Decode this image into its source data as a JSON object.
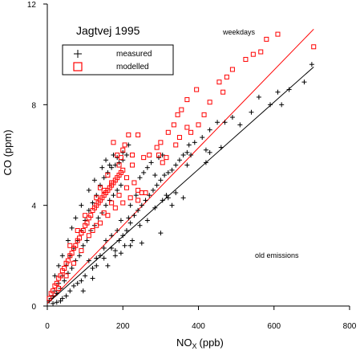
{
  "chart_data": {
    "type": "scatter",
    "title": "Jagtvej 1995",
    "xlabel": "NO",
    "xlabel_subscript": "X",
    "xlabel_unit": "(ppb)",
    "ylabel": "CO (ppm)",
    "xlim": [
      0,
      800
    ],
    "ylim": [
      0,
      12
    ],
    "x_ticks": [
      0,
      200,
      400,
      600,
      800
    ],
    "y_ticks": [
      0,
      4,
      8,
      12
    ],
    "grid": false,
    "legend_position": "top-left",
    "annotations": [
      "weekdays",
      "old emissions"
    ],
    "series": [
      {
        "name": "measured",
        "marker": "plus",
        "color": "#000000",
        "fit_line": [
          [
            0,
            0.1
          ],
          [
            705,
            9.5
          ]
        ],
        "points": [
          [
            5,
            0.2
          ],
          [
            10,
            0.3
          ],
          [
            15,
            0.4
          ],
          [
            20,
            0.6
          ],
          [
            25,
            0.5
          ],
          [
            30,
            0.9
          ],
          [
            35,
            0.7
          ],
          [
            40,
            1.2
          ],
          [
            45,
            1.0
          ],
          [
            50,
            1.6
          ],
          [
            55,
            1.3
          ],
          [
            60,
            2.0
          ],
          [
            65,
            1.5
          ],
          [
            70,
            2.3
          ],
          [
            75,
            1.8
          ],
          [
            80,
            2.6
          ],
          [
            85,
            2.0
          ],
          [
            90,
            3.0
          ],
          [
            95,
            2.4
          ],
          [
            100,
            3.4
          ],
          [
            105,
            2.6
          ],
          [
            110,
            3.8
          ],
          [
            115,
            3.0
          ],
          [
            120,
            4.1
          ],
          [
            125,
            3.2
          ],
          [
            130,
            4.4
          ],
          [
            135,
            3.5
          ],
          [
            140,
            4.8
          ],
          [
            145,
            3.7
          ],
          [
            150,
            5.1
          ],
          [
            155,
            4.0
          ],
          [
            160,
            5.3
          ],
          [
            165,
            4.2
          ],
          [
            170,
            5.5
          ],
          [
            175,
            4.4
          ],
          [
            180,
            5.6
          ],
          [
            185,
            4.6
          ],
          [
            190,
            5.7
          ],
          [
            195,
            4.8
          ],
          [
            200,
            5.8
          ],
          [
            20,
            1.2
          ],
          [
            30,
            1.6
          ],
          [
            40,
            2.0
          ],
          [
            55,
            2.6
          ],
          [
            65,
            3.1
          ],
          [
            75,
            3.5
          ],
          [
            90,
            4.0
          ],
          [
            110,
            4.6
          ],
          [
            125,
            5.0
          ],
          [
            145,
            5.5
          ],
          [
            155,
            5.8
          ],
          [
            165,
            5.6
          ],
          [
            175,
            6.0
          ],
          [
            185,
            5.9
          ],
          [
            200,
            6.1
          ],
          [
            210,
            6.0
          ],
          [
            60,
            0.6
          ],
          [
            80,
            0.9
          ],
          [
            100,
            1.2
          ],
          [
            120,
            1.5
          ],
          [
            130,
            1.6
          ],
          [
            150,
            1.9
          ],
          [
            160,
            1.6
          ],
          [
            170,
            2.3
          ],
          [
            180,
            2.2
          ],
          [
            190,
            2.6
          ],
          [
            200,
            2.8
          ],
          [
            210,
            3.0
          ],
          [
            220,
            3.3
          ],
          [
            230,
            3.6
          ],
          [
            240,
            3.8
          ],
          [
            250,
            4.0
          ],
          [
            260,
            4.2
          ],
          [
            270,
            4.4
          ],
          [
            280,
            4.6
          ],
          [
            290,
            4.8
          ],
          [
            300,
            5.0
          ],
          [
            310,
            5.2
          ],
          [
            320,
            5.3
          ],
          [
            330,
            5.4
          ],
          [
            340,
            5.6
          ],
          [
            350,
            5.8
          ],
          [
            360,
            6.0
          ],
          [
            370,
            6.1
          ],
          [
            380,
            6.0
          ],
          [
            420,
            6.2
          ],
          [
            390,
            6.5
          ],
          [
            410,
            6.7
          ],
          [
            430,
            7.0
          ],
          [
            450,
            7.3
          ],
          [
            470,
            7.3
          ],
          [
            490,
            7.5
          ],
          [
            510,
            7.2
          ],
          [
            540,
            7.7
          ],
          [
            560,
            8.3
          ],
          [
            590,
            8.0
          ],
          [
            610,
            8.5
          ],
          [
            620,
            8.0
          ],
          [
            640,
            8.6
          ],
          [
            680,
            8.9
          ],
          [
            700,
            9.6
          ],
          [
            300,
            2.9
          ],
          [
            250,
            2.5
          ],
          [
            220,
            2.4
          ],
          [
            320,
            4.3
          ],
          [
            340,
            4.5
          ],
          [
            360,
            4.3
          ],
          [
            370,
            5.6
          ],
          [
            375,
            6.4
          ],
          [
            420,
            5.7
          ],
          [
            460,
            6.3
          ],
          [
            430,
            6.1
          ],
          [
            130,
            1.9
          ],
          [
            110,
            1.8
          ],
          [
            140,
            2.0
          ],
          [
            90,
            1.0
          ],
          [
            70,
            0.8
          ],
          [
            50,
            0.4
          ],
          [
            40,
            0.3
          ],
          [
            35,
            0.2
          ],
          [
            25,
            0.15
          ],
          [
            15,
            0.1
          ],
          [
            95,
            0.6
          ],
          [
            120,
            1.1
          ],
          [
            180,
            2.0
          ],
          [
            195,
            2.1
          ],
          [
            205,
            2.4
          ],
          [
            225,
            2.6
          ],
          [
            245,
            3.2
          ],
          [
            265,
            3.4
          ],
          [
            285,
            3.9
          ],
          [
            305,
            4.2
          ],
          [
            315,
            4.4
          ],
          [
            330,
            4.0
          ],
          [
            150,
            2.3
          ],
          [
            155,
            2.6
          ],
          [
            170,
            2.8
          ],
          [
            185,
            3.0
          ],
          [
            195,
            3.4
          ],
          [
            215,
            3.5
          ],
          [
            220,
            4.0
          ],
          [
            235,
            4.4
          ],
          [
            245,
            5.1
          ],
          [
            255,
            5.3
          ],
          [
            265,
            5.5
          ],
          [
            275,
            5.7
          ],
          [
            285,
            5.2
          ],
          [
            295,
            5.9
          ],
          [
            305,
            6.0
          ],
          [
            215,
            6.4
          ]
        ]
      },
      {
        "name": "modelled",
        "marker": "square",
        "color": "#ff0000",
        "fit_line": [
          [
            0,
            0.1
          ],
          [
            705,
            11.0
          ]
        ],
        "points": [
          [
            5,
            0.3
          ],
          [
            10,
            0.5
          ],
          [
            15,
            0.6
          ],
          [
            20,
            0.8
          ],
          [
            25,
            0.9
          ],
          [
            30,
            1.1
          ],
          [
            35,
            1.2
          ],
          [
            40,
            1.4
          ],
          [
            45,
            1.5
          ],
          [
            50,
            1.7
          ],
          [
            55,
            1.8
          ],
          [
            60,
            2.0
          ],
          [
            65,
            2.1
          ],
          [
            70,
            2.3
          ],
          [
            75,
            2.4
          ],
          [
            80,
            2.6
          ],
          [
            85,
            2.7
          ],
          [
            90,
            2.9
          ],
          [
            95,
            3.0
          ],
          [
            100,
            3.2
          ],
          [
            105,
            3.3
          ],
          [
            110,
            3.5
          ],
          [
            115,
            3.6
          ],
          [
            120,
            3.8
          ],
          [
            125,
            3.9
          ],
          [
            130,
            4.0
          ],
          [
            135,
            4.1
          ],
          [
            140,
            4.2
          ],
          [
            145,
            4.3
          ],
          [
            150,
            4.4
          ],
          [
            155,
            4.5
          ],
          [
            160,
            4.6
          ],
          [
            165,
            4.7
          ],
          [
            170,
            4.8
          ],
          [
            175,
            4.9
          ],
          [
            180,
            5.0
          ],
          [
            185,
            5.1
          ],
          [
            190,
            5.2
          ],
          [
            195,
            5.3
          ],
          [
            200,
            5.4
          ],
          [
            30,
            0.7
          ],
          [
            50,
            1.2
          ],
          [
            70,
            1.7
          ],
          [
            90,
            2.2
          ],
          [
            110,
            2.8
          ],
          [
            130,
            3.2
          ],
          [
            150,
            3.7
          ],
          [
            170,
            4.1
          ],
          [
            190,
            4.4
          ],
          [
            210,
            4.7
          ],
          [
            230,
            4.9
          ],
          [
            240,
            4.6
          ],
          [
            250,
            4.5
          ],
          [
            225,
            5.6
          ],
          [
            255,
            5.9
          ],
          [
            270,
            6.0
          ],
          [
            290,
            6.3
          ],
          [
            300,
            6.5
          ],
          [
            320,
            6.9
          ],
          [
            335,
            7.2
          ],
          [
            345,
            7.6
          ],
          [
            355,
            7.8
          ],
          [
            370,
            8.2
          ],
          [
            395,
            8.6
          ],
          [
            455,
            8.9
          ],
          [
            465,
            8.5
          ],
          [
            475,
            9.1
          ],
          [
            490,
            9.4
          ],
          [
            525,
            9.8
          ],
          [
            545,
            10.0
          ],
          [
            565,
            10.1
          ],
          [
            580,
            10.6
          ],
          [
            610,
            10.8
          ],
          [
            705,
            10.3
          ],
          [
            195,
            5.9
          ],
          [
            200,
            6.2
          ],
          [
            205,
            6.4
          ],
          [
            215,
            6.8
          ],
          [
            240,
            6.8
          ],
          [
            225,
            6.0
          ],
          [
            305,
            5.7
          ],
          [
            295,
            6.0
          ],
          [
            315,
            5.9
          ],
          [
            340,
            6.4
          ],
          [
            350,
            6.7
          ],
          [
            370,
            7.1
          ],
          [
            380,
            6.9
          ],
          [
            400,
            7.2
          ],
          [
            415,
            7.6
          ],
          [
            430,
            8.1
          ],
          [
            120,
            3.0
          ],
          [
            140,
            3.3
          ],
          [
            160,
            3.6
          ],
          [
            180,
            3.9
          ],
          [
            200,
            4.1
          ],
          [
            220,
            4.3
          ],
          [
            240,
            4.2
          ],
          [
            260,
            4.5
          ],
          [
            130,
            4.3
          ],
          [
            150,
            4.6
          ],
          [
            170,
            4.9
          ],
          [
            190,
            5.6
          ],
          [
            210,
            5.1
          ],
          [
            175,
            6.5
          ],
          [
            185,
            6.0
          ],
          [
            160,
            5.2
          ],
          [
            140,
            4.7
          ],
          [
            100,
            3.6
          ],
          [
            80,
            3.0
          ],
          [
            60,
            2.4
          ]
        ]
      }
    ]
  }
}
